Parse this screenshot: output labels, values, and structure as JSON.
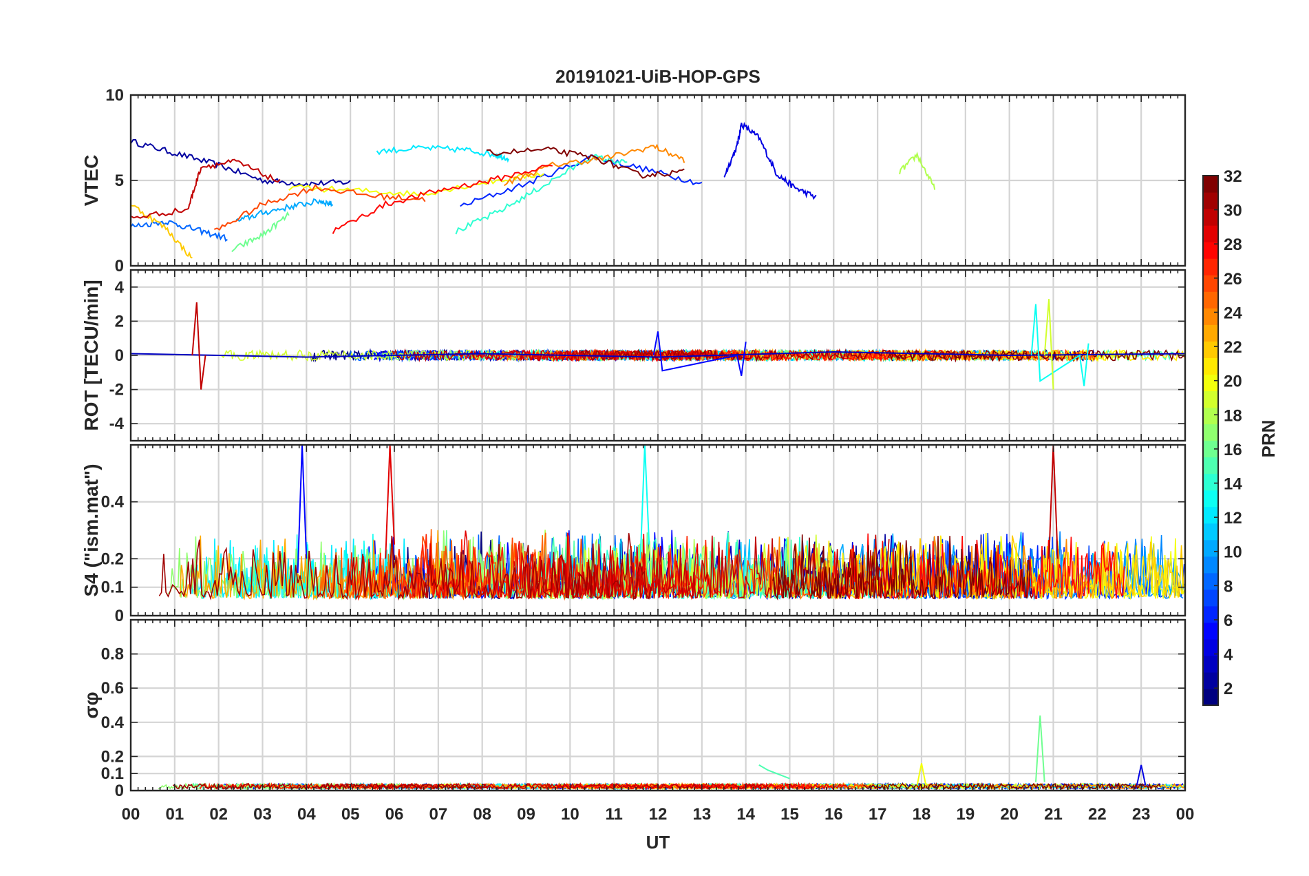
{
  "figure": {
    "title": "20191021-UiB-HOP-GPS",
    "xlabel": "UT",
    "x_tick_labels": [
      "00",
      "01",
      "02",
      "03",
      "04",
      "05",
      "06",
      "07",
      "08",
      "09",
      "10",
      "11",
      "12",
      "13",
      "14",
      "15",
      "16",
      "17",
      "18",
      "19",
      "20",
      "21",
      "22",
      "23",
      "00"
    ]
  },
  "colorbar": {
    "label": "PRN",
    "min": 1,
    "max": 32,
    "tick_labels": [
      "2",
      "4",
      "6",
      "8",
      "10",
      "12",
      "14",
      "16",
      "18",
      "20",
      "22",
      "24",
      "26",
      "28",
      "30",
      "32"
    ]
  },
  "chart_data": [
    {
      "type": "line",
      "id": "vtec",
      "ylabel": "VTEC",
      "ylim": [
        0,
        10
      ],
      "xlim": [
        0,
        24
      ],
      "y_ticks": [
        0,
        5,
        10
      ],
      "y_tick_labels": [
        "0",
        "5",
        "10"
      ],
      "grid": true,
      "series": [
        {
          "name": "PRN 2",
          "prn": 2,
          "x": [
            0,
            1,
            2,
            3,
            4,
            5
          ],
          "y": [
            7.3,
            6.6,
            5.9,
            5.0,
            4.8,
            4.9
          ]
        },
        {
          "name": "PRN 4",
          "prn": 4,
          "x": [
            13.5,
            13.8,
            13.9,
            14.3,
            14.7,
            15.1,
            15.6
          ],
          "y": [
            5.2,
            7.0,
            8.3,
            7.5,
            5.4,
            4.6,
            4.0
          ]
        },
        {
          "name": "PRN 6",
          "prn": 6,
          "x": [
            7.5,
            9,
            10.5,
            11.8,
            13
          ],
          "y": [
            3.5,
            4.8,
            6.4,
            5.6,
            4.8
          ]
        },
        {
          "name": "PRN 8",
          "prn": 8,
          "x": [
            0,
            0.8,
            1.5,
            2.2
          ],
          "y": [
            2.3,
            2.6,
            2.1,
            1.6
          ]
        },
        {
          "name": "PRN 10",
          "prn": 10,
          "x": [
            2.4,
            3,
            3.7,
            4.3,
            4.6
          ],
          "y": [
            2.6,
            3.1,
            3.5,
            3.8,
            3.6
          ]
        },
        {
          "name": "PRN 12",
          "prn": 12,
          "x": [
            5.6,
            6.6,
            7.6,
            8.3,
            8.6
          ],
          "y": [
            6.7,
            6.9,
            6.8,
            6.5,
            6.3
          ]
        },
        {
          "name": "PRN 14",
          "prn": 14,
          "x": [
            7.4,
            8.4,
            9.4,
            10.5,
            11.3
          ],
          "y": [
            2.0,
            3.2,
            4.7,
            6.4,
            6.0
          ]
        },
        {
          "name": "PRN 16",
          "prn": 16,
          "x": [
            2.3,
            3,
            3.6
          ],
          "y": [
            0.9,
            1.8,
            3.0
          ]
        },
        {
          "name": "PRN 18",
          "prn": 18,
          "x": [
            17.5,
            17.9,
            18.3
          ],
          "y": [
            5.5,
            6.5,
            4.5
          ]
        },
        {
          "name": "PRN 20",
          "prn": 20,
          "x": [
            3.6,
            5.2,
            6.6,
            8.1,
            9.4
          ],
          "y": [
            4.6,
            4.4,
            4.2,
            4.9,
            5.4
          ]
        },
        {
          "name": "PRN 22",
          "prn": 22,
          "x": [
            0,
            0.8,
            1.4
          ],
          "y": [
            3.6,
            2.2,
            0.4
          ]
        },
        {
          "name": "PRN 24",
          "prn": 24,
          "x": [
            8.5,
            9.6,
            10.8,
            11.9,
            12.6
          ],
          "y": [
            4.8,
            5.9,
            6.3,
            7.0,
            6.2
          ]
        },
        {
          "name": "PRN 26",
          "prn": 26,
          "x": [
            1.9,
            3,
            4.2,
            5.5,
            6.7
          ],
          "y": [
            2.0,
            3.6,
            4.6,
            4.1,
            3.9
          ]
        },
        {
          "name": "PRN 28",
          "prn": 28,
          "x": [
            4.6,
            5.8,
            7,
            8.2,
            9.6
          ],
          "y": [
            2.0,
            3.6,
            4.4,
            5.0,
            5.9
          ]
        },
        {
          "name": "PRN 30",
          "prn": 30,
          "x": [
            0,
            1.3,
            1.6,
            2.4,
            3.4
          ],
          "y": [
            2.8,
            3.3,
            5.8,
            6.1,
            4.9
          ]
        },
        {
          "name": "PRN 32",
          "prn": 32,
          "x": [
            8.1,
            9.5,
            10.6,
            11.6,
            12.6
          ],
          "y": [
            6.6,
            6.8,
            6.3,
            5.3,
            5.5
          ]
        }
      ]
    },
    {
      "type": "line",
      "id": "rot",
      "ylabel": "ROT [TECU/min]",
      "ylim": [
        -5,
        5
      ],
      "xlim": [
        0,
        24
      ],
      "y_ticks": [
        -4,
        -2,
        0,
        2,
        4
      ],
      "y_tick_labels": [
        "-4",
        "-2",
        "0",
        "2",
        "4"
      ],
      "grid": true,
      "series": [
        {
          "name": "PRN 3",
          "prn": 3,
          "x": [
            0,
            4,
            8,
            12,
            16,
            20,
            24
          ],
          "y": [
            0.1,
            -0.1,
            0.1,
            -0.1,
            0.2,
            0,
            0.1
          ]
        },
        {
          "name": "PRN 5",
          "prn": 5,
          "x": [
            11.9,
            12.0,
            12.1,
            13.8,
            13.9,
            14.0
          ],
          "y": [
            0,
            1.4,
            -0.9,
            0,
            -1.2,
            0.8
          ]
        },
        {
          "name": "PRN 13",
          "prn": 13,
          "x": [
            20.5,
            20.6,
            20.7,
            21.6,
            21.7,
            21.8
          ],
          "y": [
            0,
            3.0,
            -1.5,
            0,
            -1.8,
            0.7
          ]
        },
        {
          "name": "PRN 19",
          "prn": 19,
          "x": [
            20.8,
            20.9,
            21.0
          ],
          "y": [
            0,
            3.3,
            -2.0
          ]
        },
        {
          "name": "PRN 30",
          "prn": 30,
          "x": [
            1.4,
            1.5,
            1.6,
            1.7
          ],
          "y": [
            0,
            3.1,
            -2.0,
            0
          ]
        }
      ]
    },
    {
      "type": "line",
      "id": "s4",
      "ylabel": "S4 (\"ism.mat\")",
      "ylim": [
        0,
        0.6
      ],
      "xlim": [
        0,
        24
      ],
      "y_ticks": [
        0,
        0.1,
        0.2,
        0.4
      ],
      "y_tick_labels": [
        "0",
        "0.1",
        "0.2",
        "0.4"
      ],
      "grid": true,
      "series": [
        {
          "name": "PRN 5",
          "prn": 5,
          "x": [
            3.8,
            3.9,
            4.0
          ],
          "y": [
            0.15,
            0.6,
            0.2
          ]
        },
        {
          "name": "PRN 13",
          "prn": 13,
          "x": [
            11.6,
            11.7,
            11.8
          ],
          "y": [
            0.2,
            0.6,
            0.25
          ]
        },
        {
          "name": "PRN 29",
          "prn": 29,
          "x": [
            5.8,
            5.9,
            6.0
          ],
          "y": [
            0.2,
            0.6,
            0.25
          ]
        },
        {
          "name": "PRN 30",
          "prn": 30,
          "x": [
            20.9,
            21.0,
            21.1
          ],
          "y": [
            0.2,
            0.6,
            0.2
          ]
        }
      ]
    },
    {
      "type": "line",
      "id": "sigma_phi",
      "ylabel": "σφ",
      "ylim": [
        0,
        1
      ],
      "xlim": [
        0,
        24
      ],
      "y_ticks": [
        0,
        0.1,
        0.2,
        0.4,
        0.6,
        0.8
      ],
      "y_tick_labels": [
        "0",
        "0.1",
        "0.2",
        "0.4",
        "0.6",
        "0.8"
      ],
      "grid": true,
      "series": [
        {
          "name": "PRN 16",
          "prn": 16,
          "x": [
            20.6,
            20.7,
            20.8
          ],
          "y": [
            0.05,
            0.44,
            0.05
          ]
        },
        {
          "name": "PRN 15",
          "prn": 15,
          "x": [
            14.3,
            14.5,
            15.0
          ],
          "y": [
            0.15,
            0.12,
            0.07
          ]
        },
        {
          "name": "PRN 20",
          "prn": 20,
          "x": [
            17.9,
            18.0,
            18.1
          ],
          "y": [
            0.03,
            0.16,
            0.03
          ]
        },
        {
          "name": "PRN 4",
          "prn": 4,
          "x": [
            22.9,
            23.0,
            23.1
          ],
          "y": [
            0.03,
            0.15,
            0.03
          ]
        }
      ]
    }
  ]
}
